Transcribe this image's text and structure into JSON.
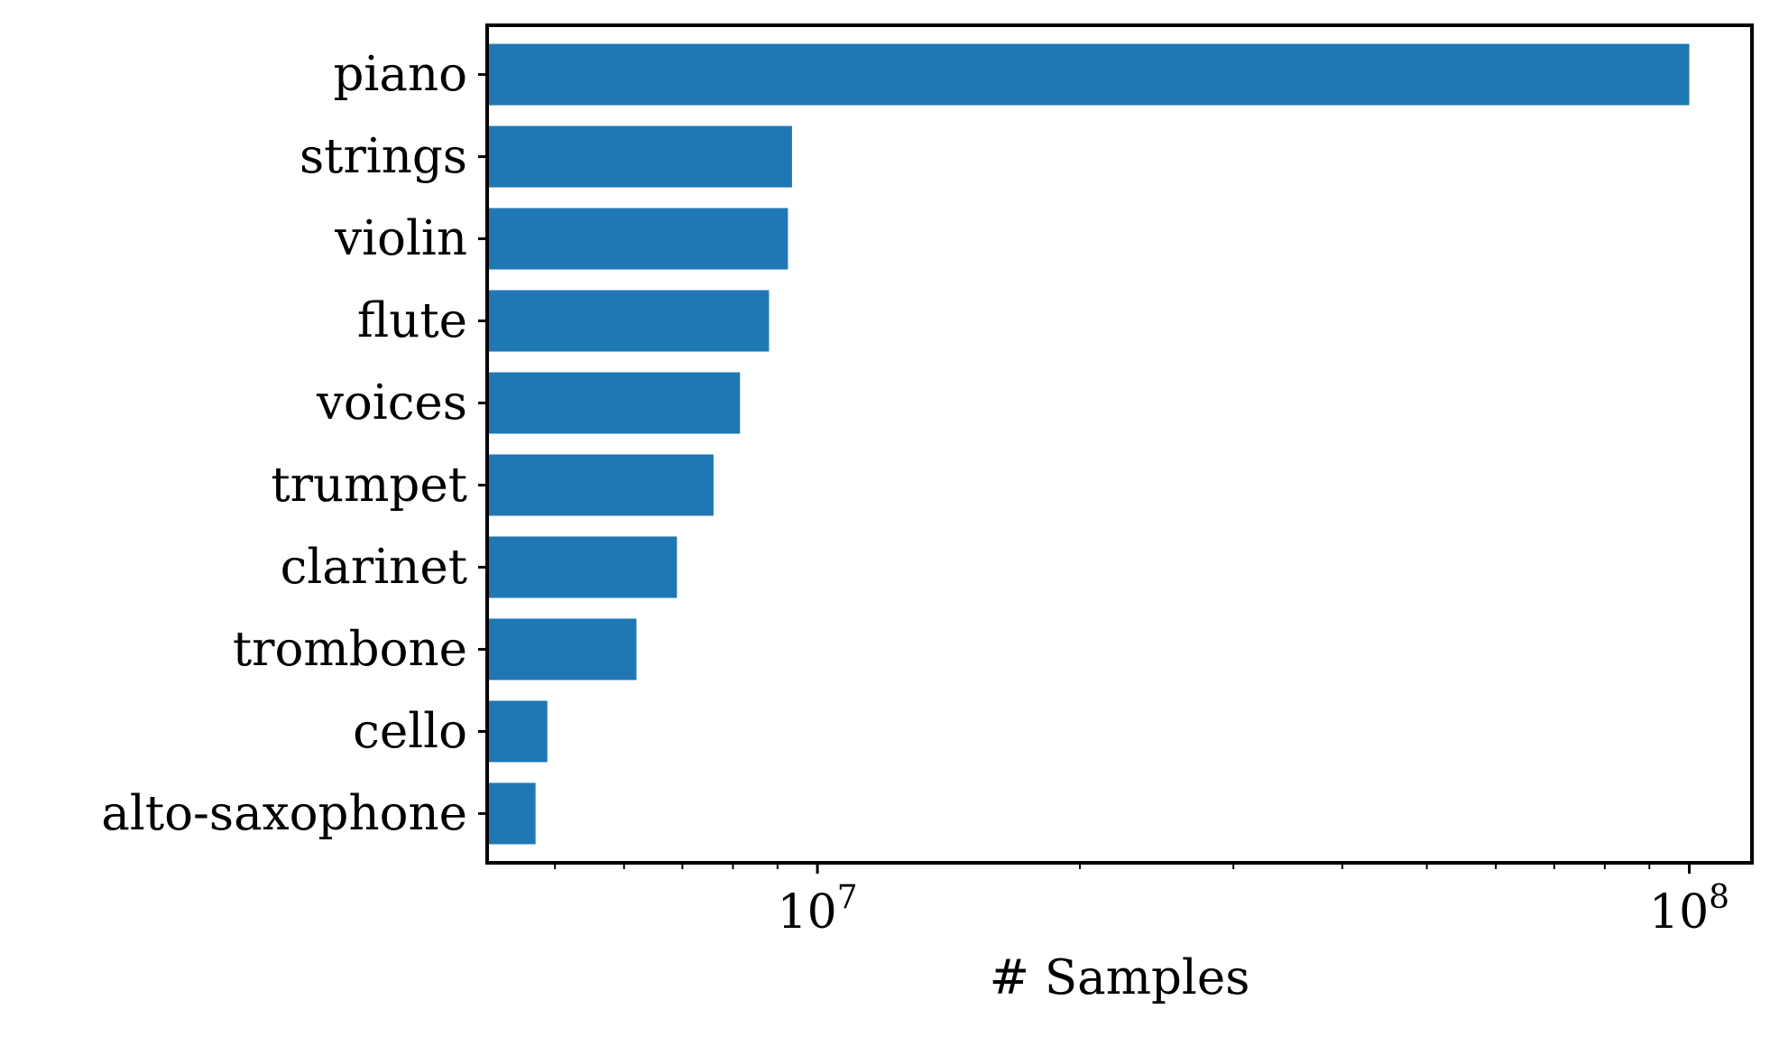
{
  "chart_data": {
    "type": "bar",
    "orientation": "horizontal",
    "categories": [
      "piano",
      "strings",
      "violin",
      "flute",
      "voices",
      "trumpet",
      "clarinet",
      "trombone",
      "cello",
      "alto-saxophone"
    ],
    "values": [
      100000000,
      9350000,
      9250000,
      8800000,
      8150000,
      7600000,
      6900000,
      6200000,
      4900000,
      4750000
    ],
    "xlabel": "# Samples",
    "ylabel": "",
    "title": "",
    "xscale": "log",
    "xlim": [
      4180000,
      118000000
    ],
    "x_ticks": [
      {
        "value": 10000000,
        "base": "10",
        "exp": "7"
      },
      {
        "value": 100000000,
        "base": "10",
        "exp": "8"
      }
    ],
    "bar_color": "#1f77b4",
    "grid": false,
    "legend": "none"
  }
}
